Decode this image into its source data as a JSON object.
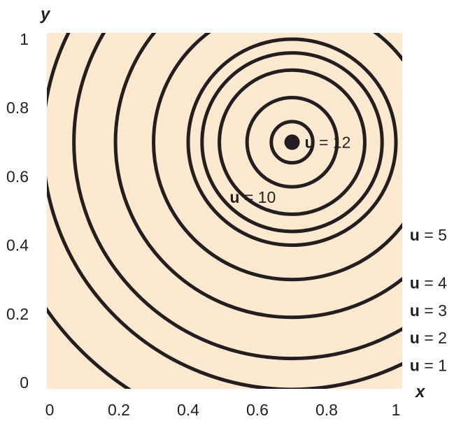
{
  "chart_data": {
    "type": "contour",
    "title": "",
    "xlabel": "x",
    "ylabel": "y",
    "xlim": [
      0,
      1
    ],
    "ylim": [
      0,
      1
    ],
    "x_ticks": [
      "0",
      "0.2",
      "0.4",
      "0.6",
      "0.8",
      "1"
    ],
    "y_ticks": [
      "0",
      "0.2",
      "0.4",
      "0.6",
      "0.8",
      "1"
    ],
    "background_color": "#fde9cf",
    "line_color": "#231f20",
    "max_point": {
      "x": 0.7,
      "y": 0.7,
      "label_var": "u",
      "label_eq": "= 12"
    },
    "contours": [
      {
        "radius": 0.06
      },
      {
        "radius": 0.13
      },
      {
        "radius": 0.21
      },
      {
        "radius": 0.3
      },
      {
        "radius": 0.4,
        "label_var": "u",
        "label_eq": "= 1",
        "label_x": 1.04,
        "label_y": 0.05
      },
      {
        "radius": 0.51,
        "label_var": "u",
        "label_eq": "= 2",
        "label_x": 1.04,
        "label_y": 0.13
      },
      {
        "radius": 0.63,
        "label_var": "u",
        "label_eq": "= 3",
        "label_x": 1.04,
        "label_y": 0.21
      },
      {
        "radius": 0.72,
        "label_var": "u",
        "label_eq": "= 4",
        "label_x": 1.04,
        "label_y": 0.29
      },
      {
        "radius": 0.86,
        "label_var": "u",
        "label_eq": "= 5",
        "label_x": 1.04,
        "label_y": 0.43
      },
      {
        "radius": 0.26,
        "label_var": "u",
        "label_eq": "= 10",
        "label_x": 0.52,
        "label_y": 0.54
      }
    ]
  }
}
